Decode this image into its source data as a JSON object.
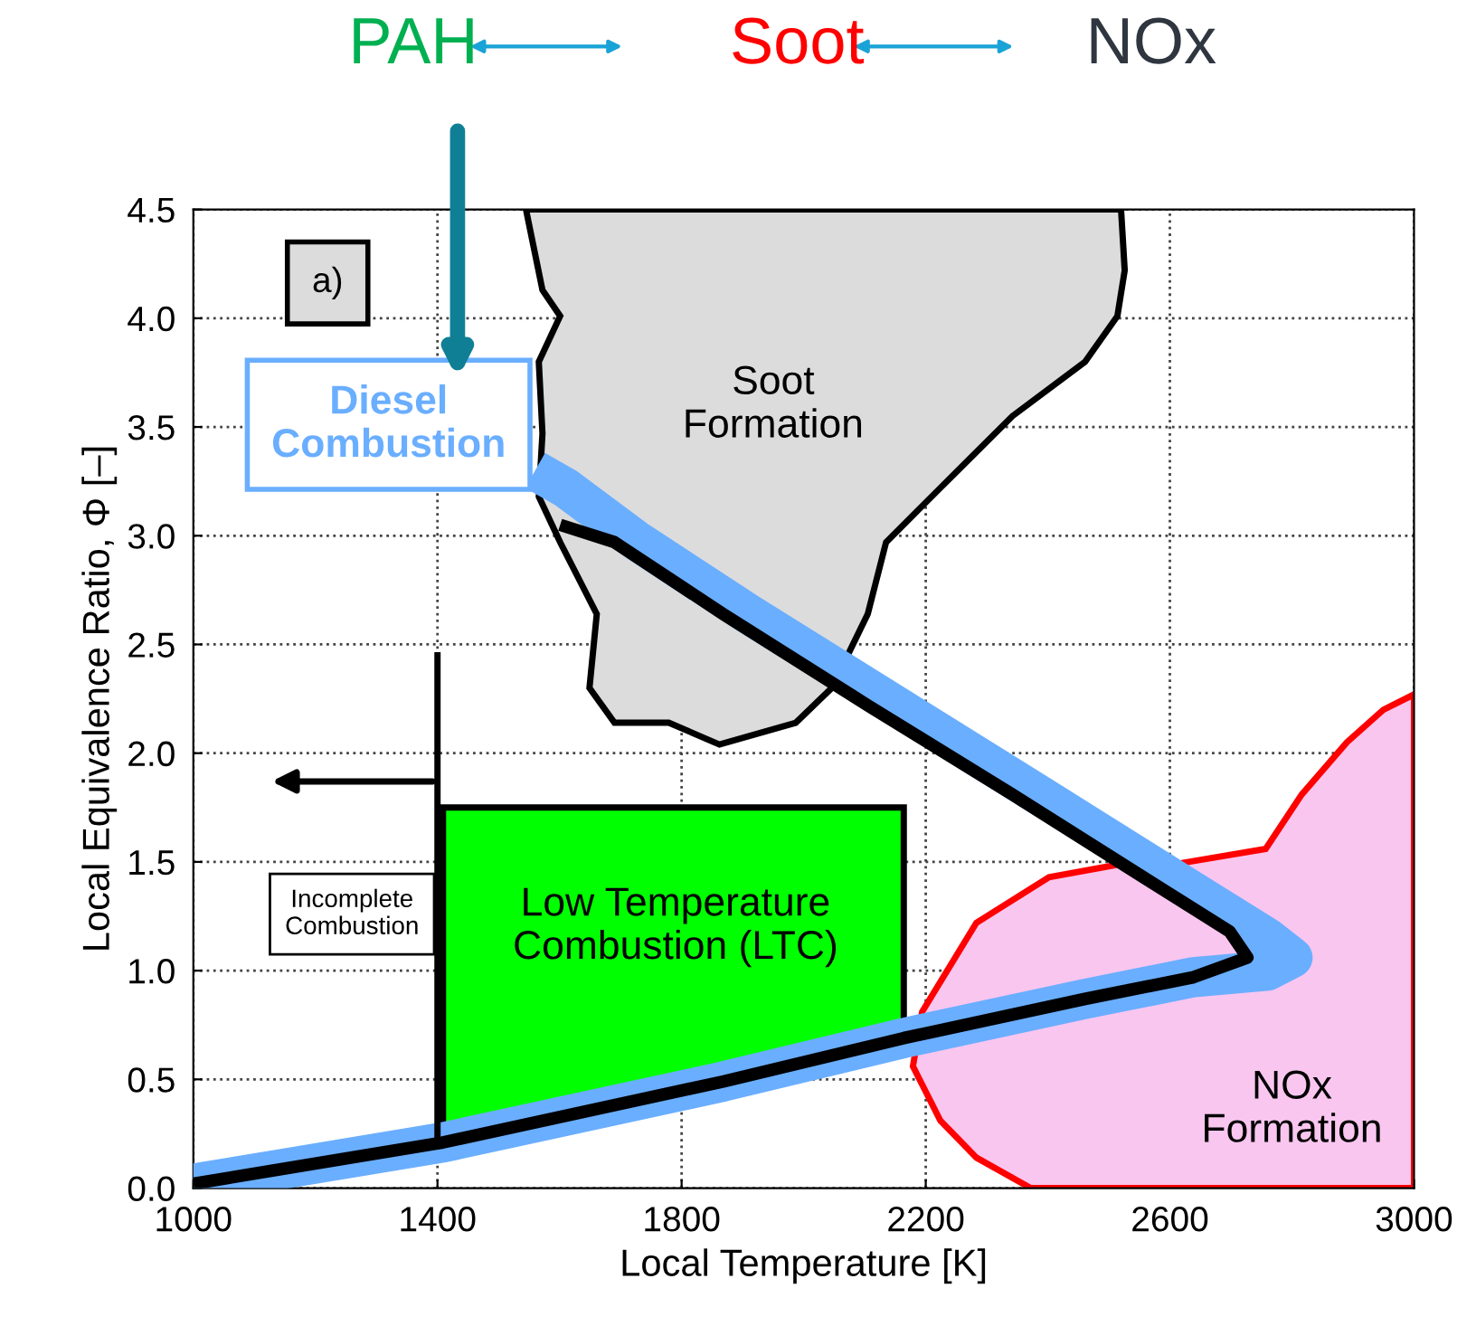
{
  "chart_data": {
    "type": "line",
    "xlabel": "Local Temperature [K]",
    "ylabel": "Local Equivalence Ratio, Φ [–]",
    "xlim": [
      1000,
      3000
    ],
    "ylim": [
      0,
      4.5
    ],
    "xticks": [
      1000,
      1400,
      1800,
      2200,
      2600,
      3000
    ],
    "yticks": [
      {
        "value": 0,
        "label": "0.0"
      },
      {
        "value": 0.5,
        "label": "0.5"
      },
      {
        "value": 1,
        "label": "1.0"
      },
      {
        "value": 1.5,
        "label": "1.5"
      },
      {
        "value": 2,
        "label": "2.0"
      },
      {
        "value": 2.5,
        "label": "2.5"
      },
      {
        "value": 3,
        "label": "3.0"
      },
      {
        "value": 3.5,
        "label": "3.5"
      },
      {
        "value": 4,
        "label": "4.0"
      },
      {
        "value": 4.5,
        "label": "4.5"
      }
    ],
    "grid": true,
    "series": [
      {
        "type": "area",
        "color": "#dcdcdc",
        "x": [
          1545,
          1572,
          1601,
          1566,
          1572,
          1566,
          1601,
          1661,
          1649,
          1690,
          1779,
          1862,
          1987,
          2046,
          2105,
          2135,
          2224,
          2342,
          2461,
          2514,
          2526,
          2520
        ],
        "values": [
          4.5,
          4.13,
          4.01,
          3.8,
          3.47,
          3.18,
          2.97,
          2.64,
          2.3,
          2.14,
          2.14,
          2.04,
          2.14,
          2.3,
          2.64,
          2.97,
          3.22,
          3.55,
          3.8,
          4.01,
          4.22,
          4.5
        ]
      },
      {
        "type": "area",
        "color": "#f9c6ef",
        "x": [
          2372,
          2283,
          2224,
          2179,
          2194,
          2283,
          2402,
          2520,
          2609,
          2757,
          2816,
          2890,
          2950,
          3000,
          3000
        ],
        "values": [
          0,
          0.14,
          0.31,
          0.56,
          0.81,
          1.22,
          1.43,
          1.49,
          1.49,
          1.56,
          1.81,
          2.05,
          2.2,
          2.27,
          0
        ]
      },
      {
        "type": "area",
        "color": "#00ff00",
        "x": [
          1409,
          2164,
          2164,
          1409
        ],
        "values": [
          1.75,
          1.75,
          0.62,
          0.21
        ]
      },
      {
        "color": "#6aaeff",
        "x": [
          1000,
          1409,
          1868,
          2164,
          2461,
          2639,
          2760,
          2801,
          2760,
          2640,
          2390,
          2150,
          1910,
          1730,
          1610,
          1560
        ],
        "values": [
          0.02,
          0.21,
          0.49,
          0.69,
          0.87,
          0.97,
          1.0,
          1.06,
          1.15,
          1.36,
          1.8,
          2.22,
          2.64,
          2.97,
          3.22,
          3.3
        ]
      },
      {
        "color": "#000000",
        "x": [
          1000,
          1409,
          1868,
          2164,
          2461,
          2639,
          2727,
          2698,
          2579,
          2342,
          2105,
          1868,
          1690,
          1601
        ],
        "values": [
          0.02,
          0.21,
          0.49,
          0.69,
          0.87,
          0.97,
          1.06,
          1.18,
          1.39,
          1.81,
          2.22,
          2.64,
          2.97,
          3.05
        ]
      }
    ],
    "ref_lines": [
      {
        "axis": "x",
        "value": 1400,
        "color": "#000000"
      }
    ],
    "annotations": [
      "PAH",
      "Soot",
      "NOx",
      "a)",
      "Diesel\nCombustion",
      "Incomplete\nCombustion",
      "Soot\nFormation",
      "NOx\nFormation",
      "Low Temperature\nCombustion (LTC)"
    ]
  }
}
